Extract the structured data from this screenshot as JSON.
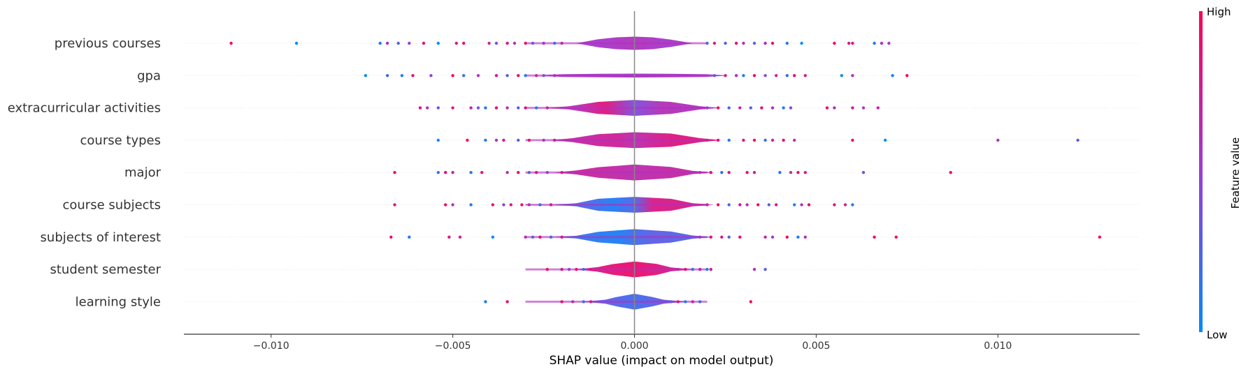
{
  "chart_data": {
    "type": "scatter",
    "subtype": "shap-violin-summary",
    "title": "",
    "xlabel": "SHAP value (impact on model output)",
    "ylabel": "",
    "xlim": [
      -0.0124,
      0.0139
    ],
    "xticks": [
      -0.01,
      -0.005,
      0.0,
      0.005,
      0.01
    ],
    "xtick_labels": [
      "−0.010",
      "−0.005",
      "0.000",
      "0.005",
      "0.010"
    ],
    "zero_line": 0.0,
    "grid": "horizontal dotted",
    "colorbar": {
      "title": "Feature value",
      "high_label": "High",
      "low_label": "Low",
      "low_color": "#008bfb",
      "high_color": "#ff0052",
      "placement": "right"
    },
    "features": [
      {
        "name": "previous courses",
        "violin": [
          [
            -0.001,
            0.3
          ],
          [
            -0.0005,
            0.45
          ],
          [
            0.0,
            0.5
          ],
          [
            0.0005,
            0.45
          ],
          [
            0.001,
            0.28
          ]
        ],
        "violin_colors": [
          [
            -0.0015,
            0.55
          ],
          [
            -0.0008,
            0.55
          ],
          [
            0.0,
            0.6
          ],
          [
            0.0008,
            0.55
          ],
          [
            0.0015,
            0.55
          ]
        ],
        "points": [
          [
            -0.0111,
            1.0
          ],
          [
            -0.0093,
            0.0
          ],
          [
            -0.007,
            0.1
          ],
          [
            -0.0068,
            0.6
          ],
          [
            -0.0065,
            0.3
          ],
          [
            -0.0062,
            0.5
          ],
          [
            -0.0058,
            0.9
          ],
          [
            -0.0054,
            0.0
          ],
          [
            -0.0049,
            0.8
          ],
          [
            -0.0047,
            0.9
          ],
          [
            -0.004,
            0.7
          ],
          [
            -0.0038,
            0.4
          ],
          [
            -0.0035,
            0.85
          ],
          [
            -0.0033,
            0.6
          ],
          [
            -0.003,
            0.9
          ],
          [
            -0.0028,
            0.3
          ],
          [
            -0.0025,
            0.6
          ],
          [
            -0.0022,
            0.2
          ],
          [
            -0.002,
            0.7
          ],
          [
            0.002,
            0.3
          ],
          [
            0.0022,
            0.8
          ],
          [
            0.0025,
            0.2
          ],
          [
            0.0028,
            0.9
          ],
          [
            0.003,
            0.6
          ],
          [
            0.0033,
            0.3
          ],
          [
            0.0036,
            0.7
          ],
          [
            0.0038,
            0.9
          ],
          [
            0.0042,
            0.1
          ],
          [
            0.0046,
            0.0
          ],
          [
            0.0055,
            1.0
          ],
          [
            0.0059,
            0.8
          ],
          [
            0.006,
            0.9
          ],
          [
            0.0066,
            0.1
          ],
          [
            0.0068,
            0.6
          ],
          [
            0.007,
            0.5
          ]
        ]
      },
      {
        "name": "gpa",
        "violin": [
          [
            -0.002,
            0.1
          ],
          [
            -0.001,
            0.13
          ],
          [
            0.0,
            0.15
          ],
          [
            0.001,
            0.13
          ],
          [
            0.002,
            0.1
          ]
        ],
        "violin_colors": [
          [
            -0.002,
            0.55
          ],
          [
            0.0,
            0.55
          ],
          [
            0.002,
            0.55
          ]
        ],
        "points": [
          [
            -0.0074,
            0.0
          ],
          [
            -0.0068,
            0.2
          ],
          [
            -0.0064,
            0.1
          ],
          [
            -0.0061,
            0.9
          ],
          [
            -0.0056,
            0.5
          ],
          [
            -0.005,
            1.0
          ],
          [
            -0.0047,
            0.2
          ],
          [
            -0.0043,
            0.6
          ],
          [
            -0.0038,
            0.8
          ],
          [
            -0.0035,
            0.3
          ],
          [
            -0.0032,
            0.9
          ],
          [
            -0.003,
            0.1
          ],
          [
            -0.0027,
            0.7
          ],
          [
            -0.0025,
            0.4
          ],
          [
            -0.0022,
            0.6
          ],
          [
            0.0022,
            0.3
          ],
          [
            0.0025,
            0.8
          ],
          [
            0.0028,
            0.6
          ],
          [
            0.003,
            0.1
          ],
          [
            0.0033,
            0.9
          ],
          [
            0.0036,
            0.4
          ],
          [
            0.0039,
            0.7
          ],
          [
            0.0042,
            0.2
          ],
          [
            0.0044,
            0.9
          ],
          [
            0.0047,
            0.8
          ],
          [
            0.0057,
            0.0
          ],
          [
            0.006,
            0.6
          ],
          [
            0.0071,
            0.1
          ],
          [
            0.0075,
            0.95
          ]
        ]
      },
      {
        "name": "extracurricular activities",
        "violin": [
          [
            -0.0018,
            0.12
          ],
          [
            -0.001,
            0.45
          ],
          [
            0.0,
            0.6
          ],
          [
            0.001,
            0.45
          ],
          [
            0.0018,
            0.12
          ]
        ],
        "violin_colors": [
          [
            -0.0016,
            0.62
          ],
          [
            -0.0008,
            0.85
          ],
          [
            0.0,
            0.4
          ],
          [
            0.0008,
            0.62
          ],
          [
            0.0016,
            0.6
          ]
        ],
        "points": [
          [
            -0.0059,
            0.9
          ],
          [
            -0.0057,
            0.6
          ],
          [
            -0.0054,
            0.3
          ],
          [
            -0.005,
            0.8
          ],
          [
            -0.0045,
            0.7
          ],
          [
            -0.0043,
            0.4
          ],
          [
            -0.0041,
            0.1
          ],
          [
            -0.0038,
            0.9
          ],
          [
            -0.0035,
            0.6
          ],
          [
            -0.0032,
            0.3
          ],
          [
            -0.003,
            0.85
          ],
          [
            -0.0027,
            0.1
          ],
          [
            -0.0024,
            0.7
          ],
          [
            0.002,
            0.5
          ],
          [
            0.0023,
            0.9
          ],
          [
            0.0026,
            0.2
          ],
          [
            0.0029,
            0.7
          ],
          [
            0.0032,
            0.3
          ],
          [
            0.0035,
            0.9
          ],
          [
            0.0038,
            0.6
          ],
          [
            0.0041,
            0.1
          ],
          [
            0.0043,
            0.4
          ],
          [
            0.0053,
            0.9
          ],
          [
            0.0055,
            0.6
          ],
          [
            0.006,
            0.8
          ],
          [
            0.0063,
            0.5
          ],
          [
            0.0067,
            0.7
          ]
        ]
      },
      {
        "name": "course types",
        "violin": [
          [
            -0.0017,
            0.15
          ],
          [
            -0.001,
            0.45
          ],
          [
            0.0,
            0.6
          ],
          [
            0.001,
            0.5
          ],
          [
            0.0018,
            0.15
          ]
        ],
        "violin_colors": [
          [
            -0.0015,
            0.7
          ],
          [
            -0.0005,
            0.75
          ],
          [
            0.0,
            0.65
          ],
          [
            0.0008,
            0.8
          ],
          [
            0.0016,
            0.85
          ]
        ],
        "points": [
          [
            -0.0054,
            0.0
          ],
          [
            -0.0046,
            0.95
          ],
          [
            -0.0041,
            0.1
          ],
          [
            -0.0038,
            0.6
          ],
          [
            -0.0036,
            0.8
          ],
          [
            -0.0032,
            0.3
          ],
          [
            -0.0029,
            0.9
          ],
          [
            -0.0025,
            0.5
          ],
          [
            -0.0022,
            0.8
          ],
          [
            0.002,
            0.7
          ],
          [
            0.0023,
            0.9
          ],
          [
            0.0026,
            0.1
          ],
          [
            0.003,
            0.8
          ],
          [
            0.0033,
            0.95
          ],
          [
            0.0036,
            0.2
          ],
          [
            0.0038,
            0.7
          ],
          [
            0.0041,
            0.9
          ],
          [
            0.0044,
            0.6
          ],
          [
            0.006,
            0.9
          ],
          [
            0.0069,
            0.0
          ],
          [
            0.01,
            0.6
          ],
          [
            0.0122,
            0.3
          ]
        ]
      },
      {
        "name": "major",
        "violin": [
          [
            -0.0016,
            0.15
          ],
          [
            -0.001,
            0.4
          ],
          [
            0.0,
            0.6
          ],
          [
            0.001,
            0.42
          ],
          [
            0.0016,
            0.12
          ]
        ],
        "violin_colors": [
          [
            -0.0012,
            0.72
          ],
          [
            0.0,
            0.65
          ],
          [
            0.0012,
            0.7
          ]
        ],
        "points": [
          [
            -0.0066,
            0.9
          ],
          [
            -0.0054,
            0.2
          ],
          [
            -0.0052,
            0.9
          ],
          [
            -0.005,
            0.7
          ],
          [
            -0.0045,
            0.1
          ],
          [
            -0.0042,
            0.8
          ],
          [
            -0.0035,
            0.6
          ],
          [
            -0.0032,
            0.9
          ],
          [
            -0.0029,
            0.3
          ],
          [
            -0.0027,
            0.85
          ],
          [
            -0.0024,
            0.5
          ],
          [
            -0.002,
            0.8
          ],
          [
            0.0018,
            0.6
          ],
          [
            0.0021,
            0.9
          ],
          [
            0.0024,
            0.2
          ],
          [
            0.0026,
            0.8
          ],
          [
            0.0031,
            0.9
          ],
          [
            0.0033,
            0.7
          ],
          [
            0.004,
            0.1
          ],
          [
            0.0043,
            0.6
          ],
          [
            0.0045,
            0.9
          ],
          [
            0.0047,
            0.8
          ],
          [
            0.0063,
            0.3
          ],
          [
            0.0087,
            0.9
          ]
        ]
      },
      {
        "name": "course subjects",
        "violin": [
          [
            -0.0016,
            0.12
          ],
          [
            -0.001,
            0.45
          ],
          [
            0.0,
            0.6
          ],
          [
            0.001,
            0.45
          ],
          [
            0.0016,
            0.12
          ]
        ],
        "violin_colors": [
          [
            -0.0014,
            0.25
          ],
          [
            -0.0006,
            0.1
          ],
          [
            0.0,
            0.25
          ],
          [
            0.0005,
            0.8
          ],
          [
            0.0014,
            0.8
          ]
        ],
        "points": [
          [
            -0.0066,
            0.8
          ],
          [
            -0.0052,
            0.95
          ],
          [
            -0.005,
            0.6
          ],
          [
            -0.0045,
            0.1
          ],
          [
            -0.0039,
            0.9
          ],
          [
            -0.0036,
            0.4
          ],
          [
            -0.0034,
            0.8
          ],
          [
            -0.0031,
            0.9
          ],
          [
            -0.0029,
            0.6
          ],
          [
            -0.0026,
            0.2
          ],
          [
            -0.0023,
            0.8
          ],
          [
            0.002,
            0.7
          ],
          [
            0.0023,
            0.9
          ],
          [
            0.0026,
            0.2
          ],
          [
            0.0029,
            0.8
          ],
          [
            0.0031,
            0.6
          ],
          [
            0.0034,
            0.9
          ],
          [
            0.0037,
            0.3
          ],
          [
            0.0039,
            0.8
          ],
          [
            0.0044,
            0.1
          ],
          [
            0.0046,
            0.6
          ],
          [
            0.0048,
            0.9
          ],
          [
            0.0055,
            0.8
          ],
          [
            0.0058,
            0.7
          ],
          [
            0.006,
            0.1
          ]
        ]
      },
      {
        "name": "subjects of interest",
        "violin": [
          [
            -0.0016,
            0.1
          ],
          [
            -0.001,
            0.4
          ],
          [
            0.0,
            0.6
          ],
          [
            0.001,
            0.42
          ],
          [
            0.0016,
            0.12
          ]
        ],
        "violin_colors": [
          [
            -0.0012,
            0.12
          ],
          [
            -0.0004,
            0.08
          ],
          [
            0.0,
            0.2
          ],
          [
            0.0006,
            0.3
          ],
          [
            0.0014,
            0.25
          ]
        ],
        "points": [
          [
            -0.0067,
            0.9
          ],
          [
            -0.0062,
            0.1
          ],
          [
            -0.0051,
            0.8
          ],
          [
            -0.0048,
            0.7
          ],
          [
            -0.0039,
            0.0
          ],
          [
            -0.003,
            0.6
          ],
          [
            -0.0028,
            0.3
          ],
          [
            -0.0026,
            0.9
          ],
          [
            -0.0023,
            0.2
          ],
          [
            -0.002,
            0.8
          ],
          [
            0.0018,
            0.6
          ],
          [
            0.0021,
            0.9
          ],
          [
            0.0024,
            0.8
          ],
          [
            0.0026,
            0.3
          ],
          [
            0.0029,
            0.9
          ],
          [
            0.0036,
            0.7
          ],
          [
            0.0038,
            0.5
          ],
          [
            0.0042,
            0.9
          ],
          [
            0.0045,
            0.1
          ],
          [
            0.0047,
            0.6
          ],
          [
            0.0066,
            0.9
          ],
          [
            0.0072,
            0.95
          ],
          [
            0.0128,
            0.95
          ]
        ]
      },
      {
        "name": "student semester",
        "violin": [
          [
            -0.001,
            0.18
          ],
          [
            -0.0006,
            0.4
          ],
          [
            0.0,
            0.6
          ],
          [
            0.0006,
            0.42
          ],
          [
            0.001,
            0.15
          ]
        ],
        "violin_colors": [
          [
            -0.001,
            0.85
          ],
          [
            0.0,
            0.9
          ],
          [
            0.001,
            0.8
          ]
        ],
        "points": [
          [
            -0.0024,
            0.9
          ],
          [
            -0.002,
            0.8
          ],
          [
            -0.0018,
            0.5
          ],
          [
            -0.0016,
            0.9
          ],
          [
            -0.0014,
            0.2
          ],
          [
            -0.0012,
            0.8
          ],
          [
            0.0012,
            0.6
          ],
          [
            0.0014,
            0.9
          ],
          [
            0.0016,
            0.2
          ],
          [
            0.0018,
            0.7
          ],
          [
            0.002,
            0.1
          ],
          [
            0.0021,
            0.8
          ],
          [
            0.0033,
            0.6
          ],
          [
            0.0036,
            0.3
          ]
        ]
      },
      {
        "name": "learning style",
        "violin": [
          [
            -0.0008,
            0.15
          ],
          [
            -0.0005,
            0.35
          ],
          [
            0.0,
            0.6
          ],
          [
            0.0005,
            0.35
          ],
          [
            0.0008,
            0.15
          ]
        ],
        "violin_colors": [
          [
            -0.0008,
            0.3
          ],
          [
            0.0,
            0.2
          ],
          [
            0.0008,
            0.3
          ]
        ],
        "points": [
          [
            -0.0041,
            0.1
          ],
          [
            -0.0035,
            0.9
          ],
          [
            -0.002,
            0.9
          ],
          [
            -0.0017,
            0.6
          ],
          [
            -0.0014,
            0.2
          ],
          [
            -0.0012,
            0.8
          ],
          [
            0.001,
            0.3
          ],
          [
            0.0012,
            0.8
          ],
          [
            0.0014,
            0.1
          ],
          [
            0.0016,
            0.7
          ],
          [
            0.0018,
            0.2
          ],
          [
            0.0032,
            0.95
          ]
        ]
      }
    ]
  }
}
